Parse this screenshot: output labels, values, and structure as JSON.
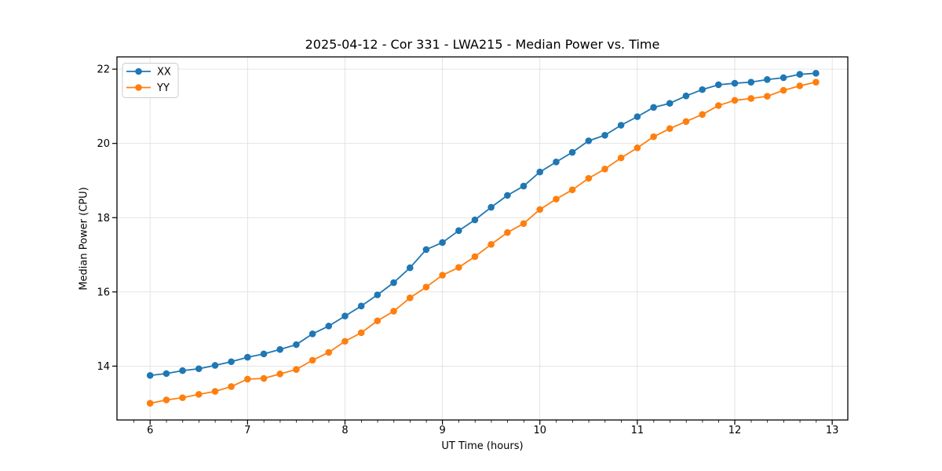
{
  "colors": {
    "background": "#ffffff",
    "grid": "#e0e0e0",
    "spine": "#000000",
    "text": "#000000",
    "series_xx": "#1f77b4",
    "series_yy": "#ff7f0e",
    "legend_border": "#cccccc"
  },
  "chart_data": {
    "type": "line",
    "title": "2025-04-12 - Cor 331 - LWA215 - Median Power vs. Time",
    "xlabel": "UT Time (hours)",
    "ylabel": "Median Power (CPU)",
    "xlim": [
      5.66,
      13.16
    ],
    "ylim": [
      12.55,
      22.33
    ],
    "x_ticks": [
      6,
      7,
      8,
      9,
      10,
      11,
      12,
      13
    ],
    "y_ticks": [
      14,
      16,
      18,
      20,
      22
    ],
    "x_minor_step": 0.1667,
    "grid": true,
    "legend_position": "upper-left",
    "marker": "circle",
    "x": [
      6.0,
      6.167,
      6.333,
      6.5,
      6.667,
      6.833,
      7.0,
      7.167,
      7.333,
      7.5,
      7.667,
      7.833,
      8.0,
      8.167,
      8.333,
      8.5,
      8.667,
      8.833,
      9.0,
      9.167,
      9.333,
      9.5,
      9.667,
      9.833,
      10.0,
      10.167,
      10.333,
      10.5,
      10.667,
      10.833,
      11.0,
      11.167,
      11.333,
      11.5,
      11.667,
      11.833,
      12.0,
      12.167,
      12.333,
      12.5,
      12.667,
      12.833
    ],
    "series": [
      {
        "name": "XX",
        "color": "#1f77b4",
        "values": [
          13.75,
          13.8,
          13.88,
          13.93,
          14.02,
          14.12,
          14.24,
          14.33,
          14.45,
          14.58,
          14.87,
          15.08,
          15.35,
          15.62,
          15.92,
          16.25,
          16.65,
          17.14,
          17.33,
          17.65,
          17.94,
          18.28,
          18.6,
          18.85,
          19.23,
          19.5,
          19.76,
          20.07,
          20.22,
          20.49,
          20.72,
          20.97,
          21.08,
          21.28,
          21.45,
          21.58,
          21.62,
          21.65,
          21.72,
          21.77,
          21.86,
          21.89
        ]
      },
      {
        "name": "YY",
        "color": "#ff7f0e",
        "values": [
          13.0,
          13.09,
          13.15,
          13.24,
          13.32,
          13.45,
          13.65,
          13.67,
          13.79,
          13.91,
          14.16,
          14.37,
          14.67,
          14.9,
          15.22,
          15.48,
          15.84,
          16.13,
          16.45,
          16.66,
          16.95,
          17.28,
          17.6,
          17.84,
          18.22,
          18.5,
          18.75,
          19.06,
          19.31,
          19.61,
          19.88,
          20.18,
          20.4,
          20.59,
          20.78,
          21.02,
          21.16,
          21.21,
          21.27,
          21.43,
          21.55,
          21.65
        ]
      }
    ]
  }
}
